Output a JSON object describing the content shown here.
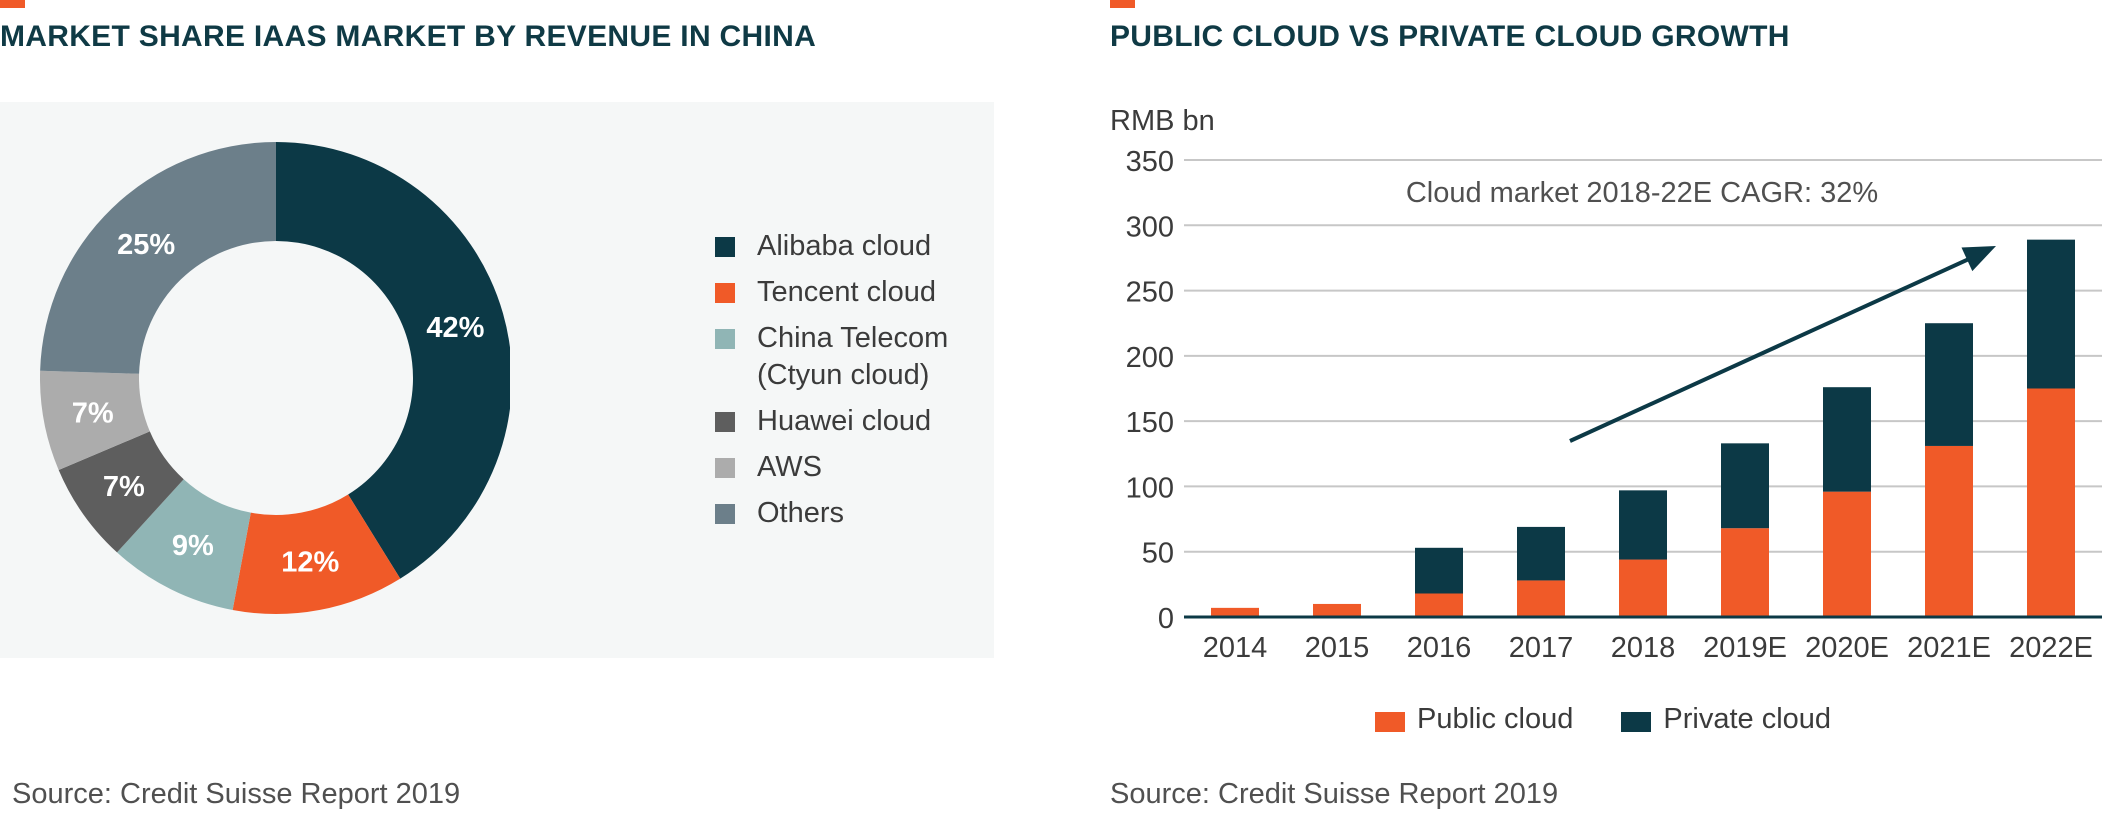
{
  "colors": {
    "accent": "#f05a28",
    "title": "#0f3a45",
    "dark_teal": "#0c3946",
    "orange": "#f05a28",
    "light_teal": "#90b5b5",
    "dark_gray": "#5e5e5e",
    "light_gray": "#acacac",
    "slate": "#6c7f8a",
    "grid": "#c7c7c7"
  },
  "left": {
    "title": "MARKET SHARE IAAS MARKET BY REVENUE IN CHINA",
    "source": "Source: Credit Suisse Report 2019"
  },
  "right": {
    "title": "PUBLIC CLOUD VS PRIVATE CLOUD GROWTH",
    "source": "Source: Credit Suisse Report 2019"
  },
  "chart_data": [
    {
      "type": "pie",
      "variant": "donut",
      "title": "MARKET SHARE IAAS MARKET BY REVENUE IN CHINA",
      "slices": [
        {
          "label": "Alibaba cloud",
          "value": 42,
          "display": "42%",
          "color": "#0c3946"
        },
        {
          "label": "Tencent cloud",
          "value": 12,
          "display": "12%",
          "color": "#f05a28"
        },
        {
          "label": "China Telecom (Ctyun cloud)",
          "label_lines": [
            "China Telecom",
            "(Ctyun cloud)"
          ],
          "value": 9,
          "display": "9%",
          "color": "#90b5b5"
        },
        {
          "label": "Huawei cloud",
          "value": 7,
          "display": "7%",
          "color": "#5e5e5e"
        },
        {
          "label": "AWS",
          "value": 7,
          "display": "7%",
          "color": "#acacac"
        },
        {
          "label": "Others",
          "value": 25,
          "display": "25%",
          "color": "#6c7f8a"
        }
      ],
      "legend_position": "right"
    },
    {
      "type": "bar",
      "stacked": true,
      "title": "PUBLIC CLOUD VS PRIVATE CLOUD GROWTH",
      "ylabel": "RMB bn",
      "ylim": [
        0,
        350
      ],
      "yticks": [
        0,
        50,
        100,
        150,
        200,
        250,
        300,
        350
      ],
      "grid": true,
      "categories": [
        "2014",
        "2015",
        "2016",
        "2017",
        "2018",
        "2019E",
        "2020E",
        "2021E",
        "2022E"
      ],
      "series": [
        {
          "name": "Public cloud",
          "color": "#f05a28",
          "values": [
            7,
            10,
            18,
            28,
            44,
            68,
            96,
            131,
            175
          ]
        },
        {
          "name": "Private cloud",
          "color": "#0c3946",
          "values": [
            0,
            0,
            35,
            41,
            53,
            65,
            80,
            94,
            114
          ]
        }
      ],
      "annotation": "Cloud market 2018-22E CAGR: 32%",
      "legend_position": "bottom"
    }
  ]
}
